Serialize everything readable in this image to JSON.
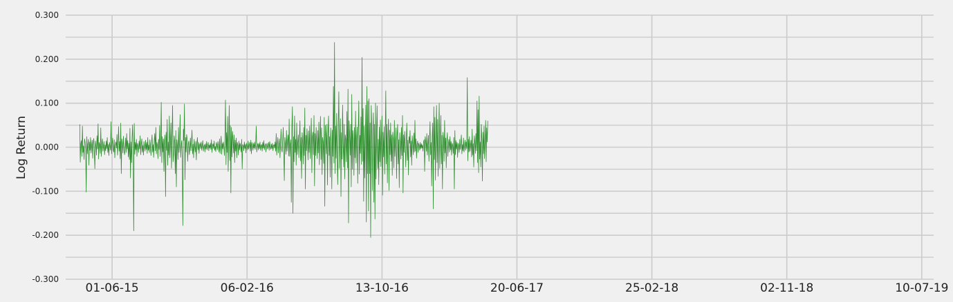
{
  "chart_data": {
    "type": "line",
    "title": "",
    "xlabel": "",
    "ylabel": "Log Return",
    "ylim": [
      -0.3,
      0.3
    ],
    "y_ticks": [
      -0.3,
      -0.2,
      -0.1,
      0.0,
      0.1,
      0.2,
      0.3
    ],
    "y_tick_labels": [
      "-0.300",
      "-0.200",
      "-0.100",
      "0.000",
      "0.100",
      "0.200",
      "0.300"
    ],
    "y_minor_grid": [
      -0.25,
      -0.15,
      -0.05,
      0.05,
      0.15,
      0.25
    ],
    "x_range": [
      "2015-03-07",
      "2019-08-01"
    ],
    "x_ticks": [
      "2015-06-01",
      "2016-02-06",
      "2016-10-13",
      "2017-06-20",
      "2018-02-25",
      "2018-11-02",
      "2019-07-10"
    ],
    "x_tick_labels": [
      "01-06-15",
      "06-02-16",
      "13-10-16",
      "20-06-17",
      "25-02-18",
      "02-11-18",
      "10-07-19"
    ],
    "grid": true,
    "line_color": "#2e8b2e",
    "series": [
      {
        "name": "",
        "start": "2015-04-02",
        "step_days": 1,
        "values": [
          0.052,
          -0.034,
          0.008,
          0.015,
          -0.021,
          0.048,
          -0.012,
          0.003,
          -0.028,
          0.019,
          0.011,
          -0.006,
          -0.102,
          0.024,
          -0.015,
          0.006,
          0.018,
          -0.041,
          0.012,
          -0.007,
          0.022,
          -0.013,
          0.004,
          0.016,
          -0.025,
          0.009,
          0.02,
          -0.011,
          -0.049,
          0.014,
          0.003,
          -0.018,
          0.026,
          -0.004,
          0.053,
          -0.027,
          0.011,
          0.006,
          -0.014,
          0.044,
          -0.021,
          0.008,
          0.019,
          -0.009,
          0.002,
          0.013,
          -0.017,
          0.005,
          -0.008,
          0.014,
          -0.003,
          0.022,
          -0.012,
          0.006,
          -0.019,
          0.011,
          0.003,
          -0.007,
          0.058,
          -0.015,
          0.009,
          0.021,
          -0.006,
          -0.011,
          0.017,
          -0.024,
          0.004,
          0.012,
          -0.002,
          0.029,
          -0.018,
          0.007,
          0.047,
          -0.009,
          0.013,
          -0.026,
          0.055,
          -0.06,
          0.019,
          0.008,
          -0.013,
          0.025,
          0.002,
          -0.017,
          -0.008,
          0.021,
          -0.012,
          0.031,
          -0.004,
          0.015,
          -0.022,
          0.009,
          -0.028,
          0.043,
          -0.07,
          0.012,
          -0.035,
          0.022,
          0.051,
          -0.018,
          -0.19,
          0.054,
          -0.016,
          0.011,
          -0.006,
          0.018,
          -0.021,
          0.009,
          0.003,
          -0.012,
          0.014,
          -0.004,
          0.026,
          -0.017,
          0.007,
          0.019,
          -0.011,
          0.004,
          -0.018,
          0.013,
          0.002,
          -0.009,
          0.016,
          -0.005,
          0.011,
          -0.014,
          0.022,
          -0.007,
          0.005,
          -0.012,
          0.017,
          0.003,
          -0.019,
          0.009,
          0.028,
          -0.011,
          0.006,
          -0.023,
          0.014,
          0.031,
          -0.008,
          0.045,
          -0.015,
          0.011,
          0.004,
          -0.026,
          0.018,
          -0.005,
          0.049,
          -0.021,
          0.007,
          0.102,
          -0.035,
          0.024,
          -0.011,
          0.019,
          -0.055,
          0.013,
          0.028,
          -0.112,
          0.034,
          -0.007,
          0.063,
          -0.041,
          0.012,
          -0.018,
          0.071,
          -0.024,
          0.009,
          0.055,
          -0.048,
          0.021,
          0.095,
          -0.033,
          -0.015,
          0.026,
          0.011,
          -0.06,
          0.038,
          -0.09,
          0.017,
          0.003,
          -0.028,
          0.045,
          -0.012,
          0.009,
          0.074,
          -0.023,
          0.006,
          0.015,
          -0.031,
          -0.178,
          0.041,
          0.015,
          0.098,
          -0.074,
          0.022,
          -0.011,
          0.029,
          0.019,
          -0.032,
          0.008,
          0.014,
          -0.017,
          -0.005,
          0.021,
          -0.008,
          0.012,
          0.039,
          -0.015,
          0.007,
          -0.024,
          0.018,
          0.003,
          -0.011,
          0.013,
          -0.029,
          0.009,
          0.022,
          -0.006,
          0.011,
          -0.014,
          0.005,
          0.009,
          -0.003,
          0.012,
          -0.007,
          0.004,
          0.015,
          -0.009,
          0.002,
          0.006,
          -0.011,
          0.008,
          -0.004,
          0.013,
          -0.006,
          0.003,
          0.011,
          -0.008,
          0.005,
          -0.002,
          0.009,
          -0.005,
          0.017,
          -0.012,
          0.004,
          0.008,
          -0.003,
          0.014,
          -0.007,
          0.002,
          -0.01,
          0.011,
          0.005,
          -0.006,
          0.013,
          0.003,
          -0.011,
          0.019,
          -0.014,
          0.006,
          0.025,
          -0.016,
          0.009,
          -0.004,
          0.012,
          0.003,
          -0.019,
          0.022,
          0.107,
          -0.04,
          0.033,
          -0.012,
          0.07,
          -0.055,
          0.025,
          0.095,
          -0.03,
          0.049,
          -0.104,
          0.045,
          -0.022,
          0.036,
          0.018,
          -0.013,
          0.028,
          -0.035,
          0.016,
          -0.009,
          0.021,
          -0.024,
          0.011,
          0.005,
          -0.018,
          0.014,
          -0.006,
          0.009,
          0.003,
          -0.011,
          0.018,
          -0.049,
          0.006,
          0.004,
          -0.008,
          0.012,
          -0.003,
          0.007,
          -0.013,
          0.009,
          0.002,
          -0.006,
          0.014,
          -0.004,
          0.005,
          0.011,
          -0.009,
          0.016,
          -0.015,
          0.011,
          0.004,
          -0.007,
          0.009,
          -0.002,
          0.012,
          -0.005,
          0.007,
          0.048,
          -0.011,
          0.003,
          0.009,
          -0.006,
          0.008,
          -0.003,
          0.012,
          -0.007,
          0.004,
          0.006,
          -0.009,
          0.011,
          -0.002,
          0.015,
          -0.006,
          0.003,
          0.008,
          -0.011,
          0.005,
          0.009,
          -0.004,
          0.002,
          0.011,
          -0.007,
          0.013,
          0.001,
          -0.005,
          0.007,
          -0.003,
          0.009,
          -0.008,
          0.004,
          0.006,
          -0.002,
          0.012,
          -0.009,
          0.031,
          -0.018,
          0.007,
          0.022,
          -0.013,
          0.004,
          0.019,
          -0.024,
          0.008,
          0.041,
          -0.005,
          -0.011,
          0.016,
          0.045,
          -0.01,
          -0.076,
          0.022,
          0.006,
          -0.016,
          0.038,
          -0.009,
          0.014,
          0.028,
          -0.02,
          0.064,
          -0.021,
          0.007,
          0.017,
          -0.125,
          0.045,
          0.092,
          -0.15,
          0.024,
          -0.033,
          0.071,
          -0.012,
          0.018,
          -0.041,
          0.055,
          -0.017,
          0.009,
          0.028,
          -0.024,
          0.016,
          0.06,
          -0.031,
          0.022,
          -0.071,
          0.033,
          0.012,
          -0.038,
          0.045,
          -0.019,
          0.089,
          -0.095,
          0.027,
          -0.008,
          0.042,
          0.014,
          -0.029,
          0.037,
          -0.012,
          0.048,
          -0.026,
          0.011,
          0.066,
          -0.058,
          0.021,
          0.034,
          -0.017,
          0.072,
          -0.088,
          0.031,
          -0.019,
          0.045,
          0.011,
          -0.026,
          0.038,
          -0.013,
          0.057,
          -0.04,
          0.016,
          0.07,
          -0.028,
          0.044,
          -0.062,
          0.022,
          0.011,
          -0.037,
          0.068,
          -0.134,
          0.05,
          0.027,
          -0.015,
          0.052,
          -0.086,
          0.032,
          0.071,
          -0.019,
          0.024,
          -0.068,
          0.044,
          0.012,
          -0.095,
          0.039,
          -0.021,
          0.138,
          -0.036,
          0.238,
          -0.06,
          0.048,
          -0.025,
          0.077,
          -0.03,
          -0.085,
          0.054,
          0.126,
          -0.048,
          0.015,
          0.065,
          -0.112,
          0.033,
          -0.027,
          0.096,
          0.01,
          -0.045,
          0.052,
          -0.072,
          0.028,
          0.017,
          -0.033,
          0.081,
          -0.047,
          0.132,
          -0.172,
          0.06,
          0.03,
          -0.018,
          0.052,
          -0.09,
          0.12,
          -0.05,
          0.038,
          0.016,
          -0.064,
          0.045,
          -0.024,
          0.082,
          -0.036,
          0.019,
          0.046,
          -0.082,
          0.034,
          0.105,
          -0.061,
          0.027,
          -0.014,
          0.069,
          -0.039,
          0.204,
          -0.032,
          0.088,
          -0.123,
          0.048,
          -0.07,
          0.021,
          0.096,
          -0.17,
          0.138,
          -0.06,
          0.105,
          -0.145,
          0.11,
          -0.06,
          0.055,
          -0.205,
          0.095,
          0.045,
          -0.098,
          0.034,
          0.078,
          -0.125,
          0.052,
          -0.163,
          0.1,
          -0.072,
          0.034,
          0.094,
          -0.048,
          0.018,
          -0.085,
          0.046,
          -0.033,
          0.062,
          -0.044,
          0.023,
          0.071,
          -0.109,
          0.034,
          -0.022,
          0.047,
          -0.061,
          0.019,
          0.128,
          -0.038,
          0.052,
          -0.081,
          0.024,
          0.064,
          -0.098,
          0.039,
          -0.017,
          0.055,
          -0.032,
          0.028,
          -0.064,
          0.034,
          0.017,
          -0.047,
          0.061,
          -0.021,
          0.012,
          0.044,
          -0.071,
          0.026,
          0.052,
          -0.038,
          0.017,
          -0.092,
          0.033,
          0.011,
          -0.027,
          0.045,
          -0.019,
          0.072,
          -0.104,
          0.028,
          -0.012,
          0.036,
          0.008,
          -0.045,
          0.021,
          0.055,
          -0.03,
          0.016,
          -0.063,
          0.024,
          0.009,
          0.038,
          -0.022,
          0.014,
          -0.041,
          0.026,
          0.007,
          -0.017,
          0.032,
          -0.011,
          0.061,
          -0.009,
          0.019,
          -0.025,
          0.006,
          0.014,
          -0.012,
          0.009,
          0.004,
          -0.007,
          0.011,
          -0.003,
          0.008,
          -0.002,
          0.005,
          -0.009,
          0.012,
          0.017,
          -0.055,
          0.024,
          0.013,
          -0.009,
          0.031,
          -0.018,
          0.006,
          0.027,
          -0.032,
          0.015,
          0.058,
          -0.017,
          0.011,
          -0.088,
          0.023,
          0.055,
          -0.14,
          0.092,
          -0.028,
          0.068,
          -0.075,
          0.026,
          0.095,
          -0.035,
          0.063,
          -0.066,
          0.031,
          0.1,
          -0.048,
          0.012,
          0.072,
          -0.038,
          0.027,
          -0.095,
          0.034,
          0.019,
          -0.032,
          0.061,
          -0.013,
          0.021,
          -0.047,
          0.014,
          0.033,
          -0.021,
          0.008,
          0.018,
          -0.011,
          0.024,
          -0.006,
          0.013,
          -0.018,
          0.009,
          0.004,
          -0.014,
          0.022,
          -0.095,
          0.038,
          -0.017,
          0.015,
          -0.004,
          0.011,
          -0.023,
          0.009,
          0.003,
          -0.012,
          0.018,
          -0.005,
          0.01,
          0.028,
          -0.015,
          0.006,
          -0.008,
          0.021,
          -0.011,
          0.004,
          0.016,
          -0.007,
          0.012,
          -0.003,
          0.158,
          -0.031,
          0.018,
          -0.011,
          0.024,
          -0.009,
          0.005,
          0.016,
          -0.022,
          0.041,
          -0.018,
          0.008,
          -0.045,
          0.026,
          0.011,
          -0.014,
          0.031,
          -0.008,
          0.105,
          -0.035,
          0.085,
          -0.058,
          0.116,
          -0.027,
          0.012,
          -0.045,
          0.052,
          0.018,
          -0.077,
          0.034,
          -0.015,
          0.048,
          -0.026,
          0.011,
          0.061,
          -0.033,
          0.044,
          0.012,
          0.06
        ]
      }
    ]
  }
}
